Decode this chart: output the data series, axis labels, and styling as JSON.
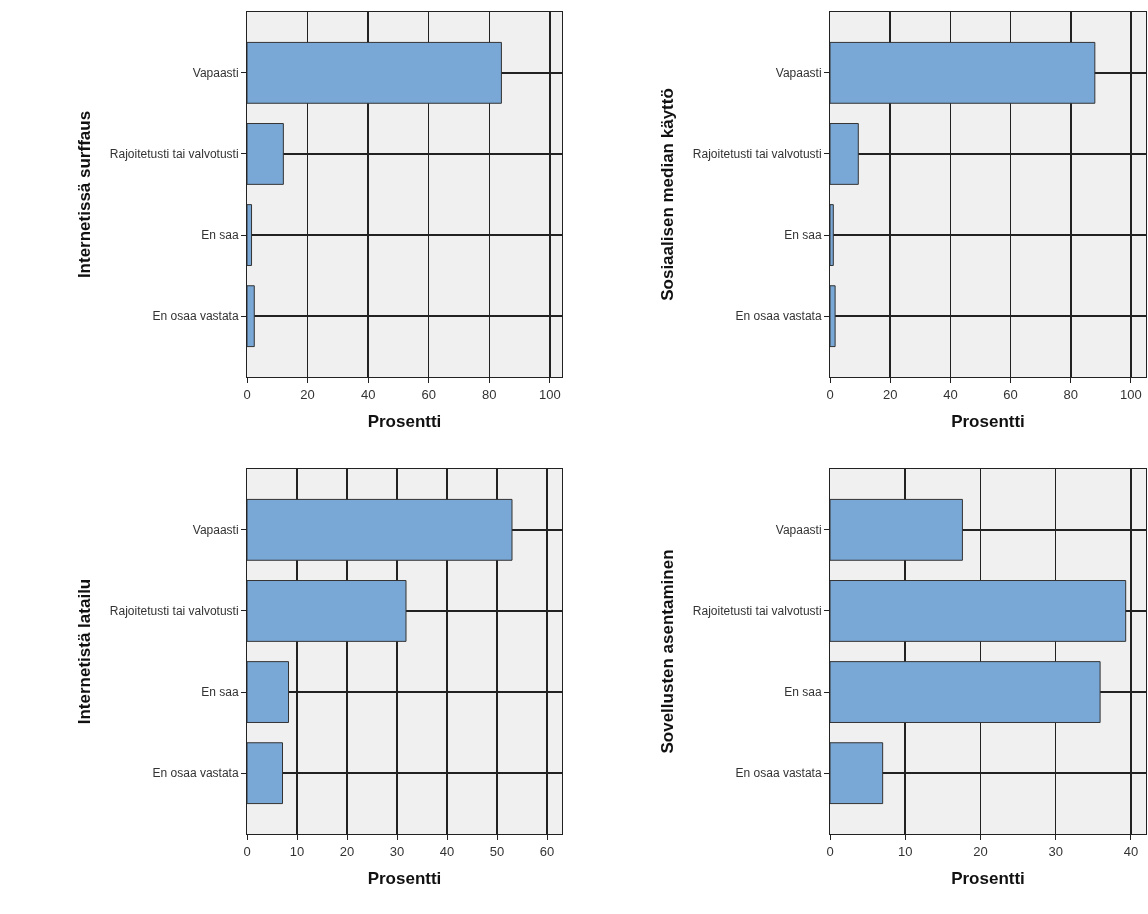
{
  "chart_data": [
    {
      "type": "bar",
      "orientation": "horizontal",
      "ylabel": "Internetissä surffaus",
      "xlabel": "Prosentti",
      "categories": [
        "Vapaasti",
        "Rajoitetusti tai valvotusti",
        "En saa",
        "En osaa vastata"
      ],
      "values": [
        84,
        12,
        1.5,
        2.4
      ],
      "color": "#7aa8d6",
      "xlim": [
        0,
        104
      ],
      "xticks": [
        0,
        20,
        40,
        60,
        80,
        100
      ],
      "grid": true
    },
    {
      "type": "bar",
      "orientation": "horizontal",
      "ylabel": "Sosiaalisen median käyttö",
      "xlabel": "Prosentti",
      "categories": [
        "Vapaasti",
        "Rajoitetusti tai valvotusti",
        "En saa",
        "En osaa vastata"
      ],
      "values": [
        88,
        9.4,
        1.1,
        1.7
      ],
      "color": "#7aa8d6",
      "xlim": [
        0,
        105
      ],
      "xticks": [
        0,
        20,
        40,
        60,
        80,
        100
      ],
      "grid": true
    },
    {
      "type": "bar",
      "orientation": "horizontal",
      "ylabel": "Internetistä latailu",
      "xlabel": "Prosentti",
      "categories": [
        "Vapaasti",
        "Rajoitetusti tai valvotusti",
        "En saa",
        "En osaa vastata"
      ],
      "values": [
        53,
        31.8,
        8.3,
        7.1
      ],
      "color": "#7aa8d6",
      "xlim": [
        0,
        63
      ],
      "xticks": [
        0,
        10,
        20,
        30,
        40,
        50,
        60
      ],
      "grid": true
    },
    {
      "type": "bar",
      "orientation": "horizontal",
      "ylabel": "Sovellusten asentaminen",
      "xlabel": "Prosentti",
      "categories": [
        "Vapaasti",
        "Rajoitetusti tai valvotusti",
        "En saa",
        "En osaa vastata"
      ],
      "values": [
        17.6,
        39.3,
        35.9,
        7.0
      ],
      "color": "#7aa8d6",
      "xlim": [
        0,
        42
      ],
      "xticks": [
        0,
        10,
        20,
        30,
        40
      ],
      "grid": true
    }
  ]
}
